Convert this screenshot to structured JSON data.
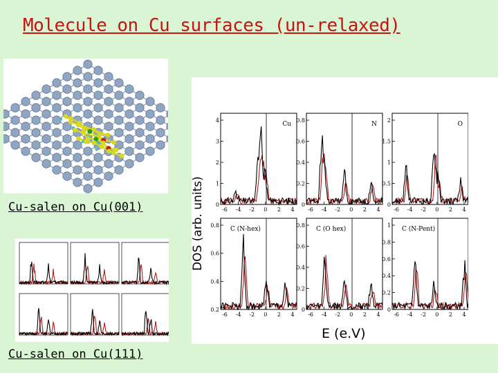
{
  "slide": {
    "title": "Molecule on Cu surfaces (un-relaxed)",
    "caption_cu001": "Cu-salen on Cu(001)",
    "caption_cu111": "Cu-salen on Cu(111)",
    "y_axis_label": "DOS (arb. units)",
    "x_axis_label": "E (e.V)"
  },
  "colors": {
    "background": "#d9f5d4",
    "title": "#cc1111",
    "trace_black": "#000000",
    "trace_red": "#b01818",
    "atom_cu": "#8fa5c2",
    "atom_c": "#d8d820",
    "atom_n": "#20a020",
    "atom_o": "#c02020",
    "atom_h": "#40c0c0"
  },
  "chart_data": {
    "type": "line",
    "panels": [
      {
        "label": "Cu",
        "y_ticks": [
          "0",
          "1",
          "2",
          "3",
          "4"
        ],
        "x_ticks": [
          "-6",
          "-4",
          "-2",
          "0",
          "2",
          "4"
        ]
      },
      {
        "label": "N",
        "y_ticks": [
          "0",
          "0.2",
          "0.4",
          "0.6",
          "0.8"
        ],
        "x_ticks": [
          "-6",
          "-4",
          "-2",
          "0",
          "2",
          "4"
        ]
      },
      {
        "label": "O",
        "y_ticks": [
          "0",
          "0.5",
          "1",
          "1.5",
          "2"
        ],
        "x_ticks": [
          "-6",
          "-4",
          "-2",
          "0",
          "2",
          "4"
        ]
      },
      {
        "label": "C (N-hex)",
        "y_ticks": [
          "0.2",
          "0.4",
          "0.6",
          "0.8"
        ],
        "x_ticks": [
          "-6",
          "-4",
          "-2",
          "0",
          "2",
          "4"
        ]
      },
      {
        "label": "C (O hex)",
        "y_ticks": [
          "0",
          "0.2",
          "0.4",
          "0.6",
          "0.8"
        ],
        "x_ticks": [
          "-6",
          "-4",
          "-2",
          "0",
          "2",
          "4"
        ]
      },
      {
        "label": "C (N-Pent)",
        "y_ticks": [
          "0",
          "0.2",
          "0.4",
          "0.6",
          "0.8",
          "1"
        ],
        "x_ticks": [
          "-6",
          "-4",
          "-2",
          "0",
          "2",
          "4"
        ]
      }
    ]
  }
}
